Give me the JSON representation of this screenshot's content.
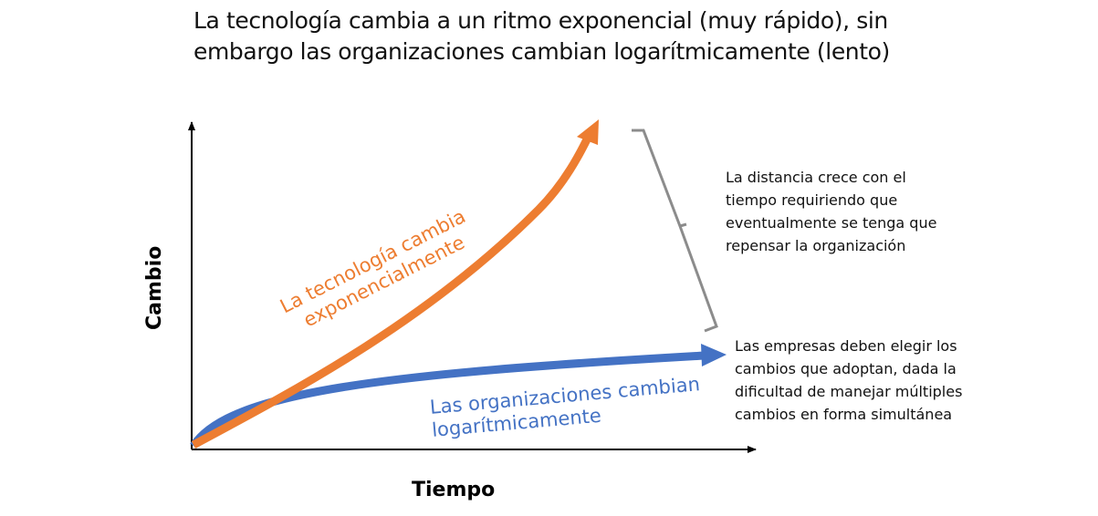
{
  "title": {
    "line1": "La tecnología cambia a un ritmo exponencial (muy rápido), sin",
    "line2": "embargo las organizaciones cambian logarítmicamente (lento)"
  },
  "axes": {
    "x_label": "Tiempo",
    "y_label": "Cambio"
  },
  "curves": {
    "technology": {
      "label_line1": "La tecnología cambia",
      "label_line2": "exponencialmente",
      "color": "#ED7D31"
    },
    "organizations": {
      "label_line1": "Las organizaciones cambian",
      "label_line2": "logarítmicamente",
      "color": "#4472C4"
    }
  },
  "notes": {
    "distance": {
      "line1": "La distancia crece con el",
      "line2": "tiempo requiriendo que",
      "line3": "eventualmente se tenga que",
      "line4": "repensar la organización"
    },
    "companies": {
      "line1": "Las empresas deben elegir los",
      "line2": "cambios que adoptan, dada la",
      "line3": "dificultad de manejar múltiples",
      "line4": "cambios en forma simultánea"
    }
  },
  "colors": {
    "axis": "#000000",
    "bracket": "#8C8C8C",
    "text": "#111111"
  }
}
